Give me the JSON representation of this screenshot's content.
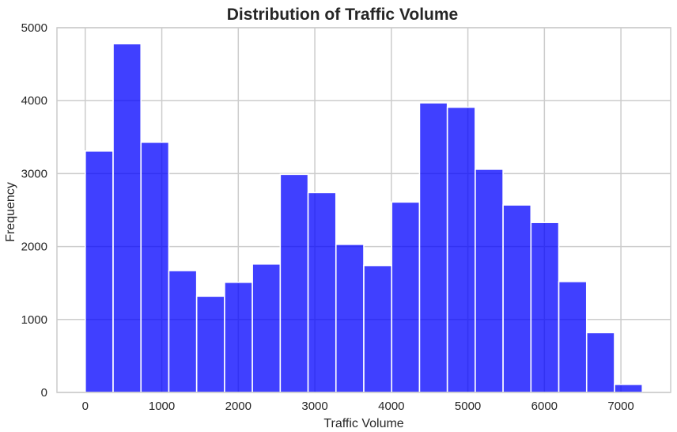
{
  "chart_data": {
    "type": "bar",
    "title": "Distribution of Traffic Volume",
    "xlabel": "Traffic Volume",
    "ylabel": "Frequency",
    "xlim": [
      -370,
      7650
    ],
    "ylim": [
      0,
      5000
    ],
    "xticks": [
      0,
      1000,
      2000,
      3000,
      4000,
      5000,
      6000,
      7000
    ],
    "yticks": [
      0,
      1000,
      2000,
      3000,
      4000,
      5000
    ],
    "grid": true,
    "bar_color": "#0000ff",
    "bar_opacity": 0.75,
    "bins": [
      {
        "x0": 0,
        "x1": 364,
        "count": 3310
      },
      {
        "x0": 364,
        "x1": 728,
        "count": 4780
      },
      {
        "x0": 728,
        "x1": 1092,
        "count": 3430
      },
      {
        "x0": 1092,
        "x1": 1456,
        "count": 1670
      },
      {
        "x0": 1456,
        "x1": 1820,
        "count": 1320
      },
      {
        "x0": 1820,
        "x1": 2184,
        "count": 1510
      },
      {
        "x0": 2184,
        "x1": 2548,
        "count": 1760
      },
      {
        "x0": 2548,
        "x1": 2912,
        "count": 2990
      },
      {
        "x0": 2912,
        "x1": 3276,
        "count": 2740
      },
      {
        "x0": 3276,
        "x1": 3640,
        "count": 2030
      },
      {
        "x0": 3640,
        "x1": 4004,
        "count": 1740
      },
      {
        "x0": 4004,
        "x1": 4368,
        "count": 2610
      },
      {
        "x0": 4368,
        "x1": 4732,
        "count": 3970
      },
      {
        "x0": 4732,
        "x1": 5096,
        "count": 3910
      },
      {
        "x0": 5096,
        "x1": 5460,
        "count": 3060
      },
      {
        "x0": 5460,
        "x1": 5824,
        "count": 2570
      },
      {
        "x0": 5824,
        "x1": 6188,
        "count": 2330
      },
      {
        "x0": 6188,
        "x1": 6552,
        "count": 1520
      },
      {
        "x0": 6552,
        "x1": 6916,
        "count": 820
      },
      {
        "x0": 6916,
        "x1": 7280,
        "count": 110
      }
    ]
  }
}
